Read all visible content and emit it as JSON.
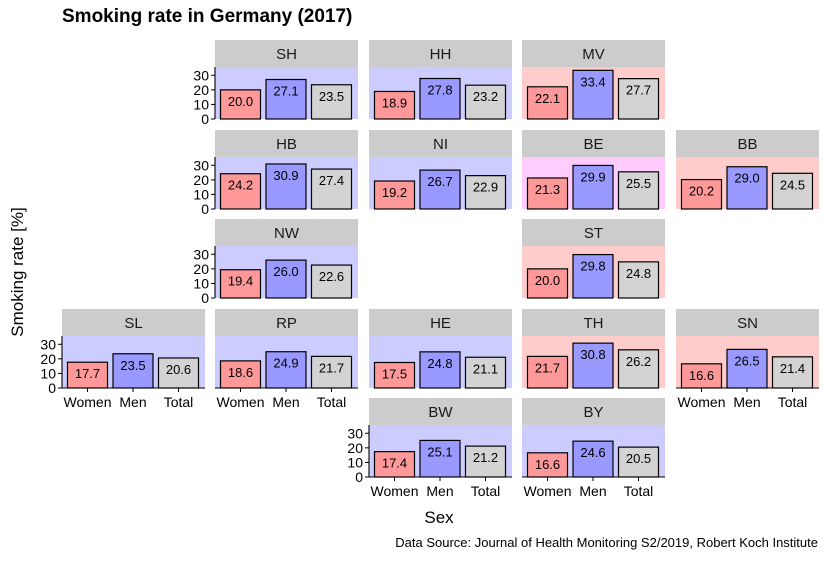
{
  "chart_data": {
    "type": "bar",
    "title": "Smoking rate in Germany (2017)",
    "xlabel": "Sex",
    "ylabel": "Smoking rate [%]",
    "caption": "Data Source: Journal of Health Monitoring S2/2019, Robert Koch Institute",
    "categories": [
      "Women",
      "Men",
      "Total"
    ],
    "ylim": [
      0,
      35
    ],
    "yticks": [
      0,
      10,
      20,
      30
    ],
    "bar_colors": {
      "Women": "#ff9999",
      "Men": "#9999ff",
      "Total": "#d3d3d3"
    },
    "panel_backgrounds": {
      "blue": "#ccccff",
      "red": "#ffcccc",
      "pink": "#ffccff"
    },
    "strip_color": "#cccccc",
    "panels": [
      {
        "state": "SH",
        "row": 0,
        "col": 1,
        "bg": "blue",
        "values": [
          20.0,
          27.1,
          23.5
        ]
      },
      {
        "state": "HH",
        "row": 0,
        "col": 2,
        "bg": "blue",
        "values": [
          18.9,
          27.8,
          23.2
        ]
      },
      {
        "state": "MV",
        "row": 0,
        "col": 3,
        "bg": "red",
        "values": [
          22.1,
          33.4,
          27.7
        ]
      },
      {
        "state": "HB",
        "row": 1,
        "col": 1,
        "bg": "blue",
        "values": [
          24.2,
          30.9,
          27.4
        ]
      },
      {
        "state": "NI",
        "row": 1,
        "col": 2,
        "bg": "blue",
        "values": [
          19.2,
          26.7,
          22.9
        ]
      },
      {
        "state": "BE",
        "row": 1,
        "col": 3,
        "bg": "pink",
        "values": [
          21.3,
          29.9,
          25.5
        ]
      },
      {
        "state": "BB",
        "row": 1,
        "col": 4,
        "bg": "red",
        "values": [
          20.2,
          29.0,
          24.5
        ]
      },
      {
        "state": "NW",
        "row": 2,
        "col": 1,
        "bg": "blue",
        "values": [
          19.4,
          26.0,
          22.6
        ]
      },
      {
        "state": "ST",
        "row": 2,
        "col": 3,
        "bg": "red",
        "values": [
          20.0,
          29.8,
          24.8
        ]
      },
      {
        "state": "SL",
        "row": 3,
        "col": 0,
        "bg": "blue",
        "values": [
          17.7,
          23.5,
          20.6
        ]
      },
      {
        "state": "RP",
        "row": 3,
        "col": 1,
        "bg": "blue",
        "values": [
          18.6,
          24.9,
          21.7
        ]
      },
      {
        "state": "HE",
        "row": 3,
        "col": 2,
        "bg": "blue",
        "values": [
          17.5,
          24.8,
          21.1
        ]
      },
      {
        "state": "TH",
        "row": 3,
        "col": 3,
        "bg": "red",
        "values": [
          21.7,
          30.8,
          26.2
        ]
      },
      {
        "state": "SN",
        "row": 3,
        "col": 4,
        "bg": "red",
        "values": [
          16.6,
          26.5,
          21.4
        ]
      },
      {
        "state": "BW",
        "row": 4,
        "col": 2,
        "bg": "blue",
        "values": [
          17.4,
          25.1,
          21.2
        ]
      },
      {
        "state": "BY",
        "row": 4,
        "col": 3,
        "bg": "blue",
        "values": [
          16.6,
          24.6,
          20.5
        ]
      }
    ]
  }
}
